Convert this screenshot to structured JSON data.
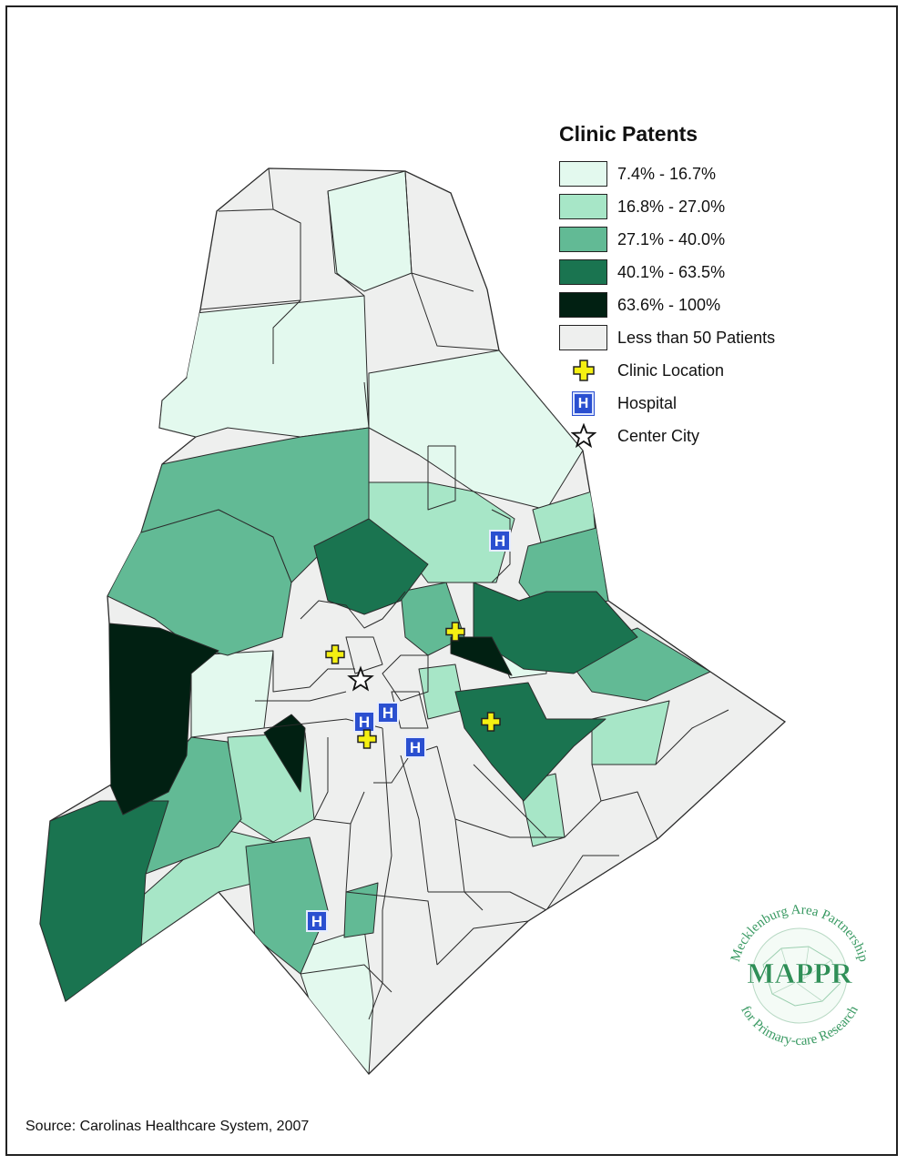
{
  "legend": {
    "title": "Clinic Patents",
    "classes": [
      {
        "label": "7.4% - 16.7%",
        "color": "#e3f9ee"
      },
      {
        "label": "16.8% - 27.0%",
        "color": "#a7e6c7"
      },
      {
        "label": "27.1% - 40.0%",
        "color": "#62ba95"
      },
      {
        "label": "40.1% - 63.5%",
        "color": "#1a7450"
      },
      {
        "label": "63.6% - 100%",
        "color": "#012012"
      },
      {
        "label": "Less than 50 Patients",
        "color": "#eeefee"
      }
    ],
    "symbols": {
      "clinic": "Clinic Location",
      "hospital": "Hospital",
      "center": "Center City"
    }
  },
  "colors": {
    "clinic_fill": "#f5f012",
    "hospital_fill": "#2a4fd0",
    "boundary": "#2b2b2b",
    "logo_green": "#4aa870"
  },
  "icons": {
    "clinic": "plus-cross-icon",
    "hospital": "hospital-h-icon",
    "center": "star-outline-icon"
  },
  "logo": {
    "top_text": "Mecklenburg Area Partnership",
    "acronym": "MAPPR",
    "bottom_text": "for Primary-care Research"
  },
  "source": "Source: Carolinas Healthcare System, 2007"
}
